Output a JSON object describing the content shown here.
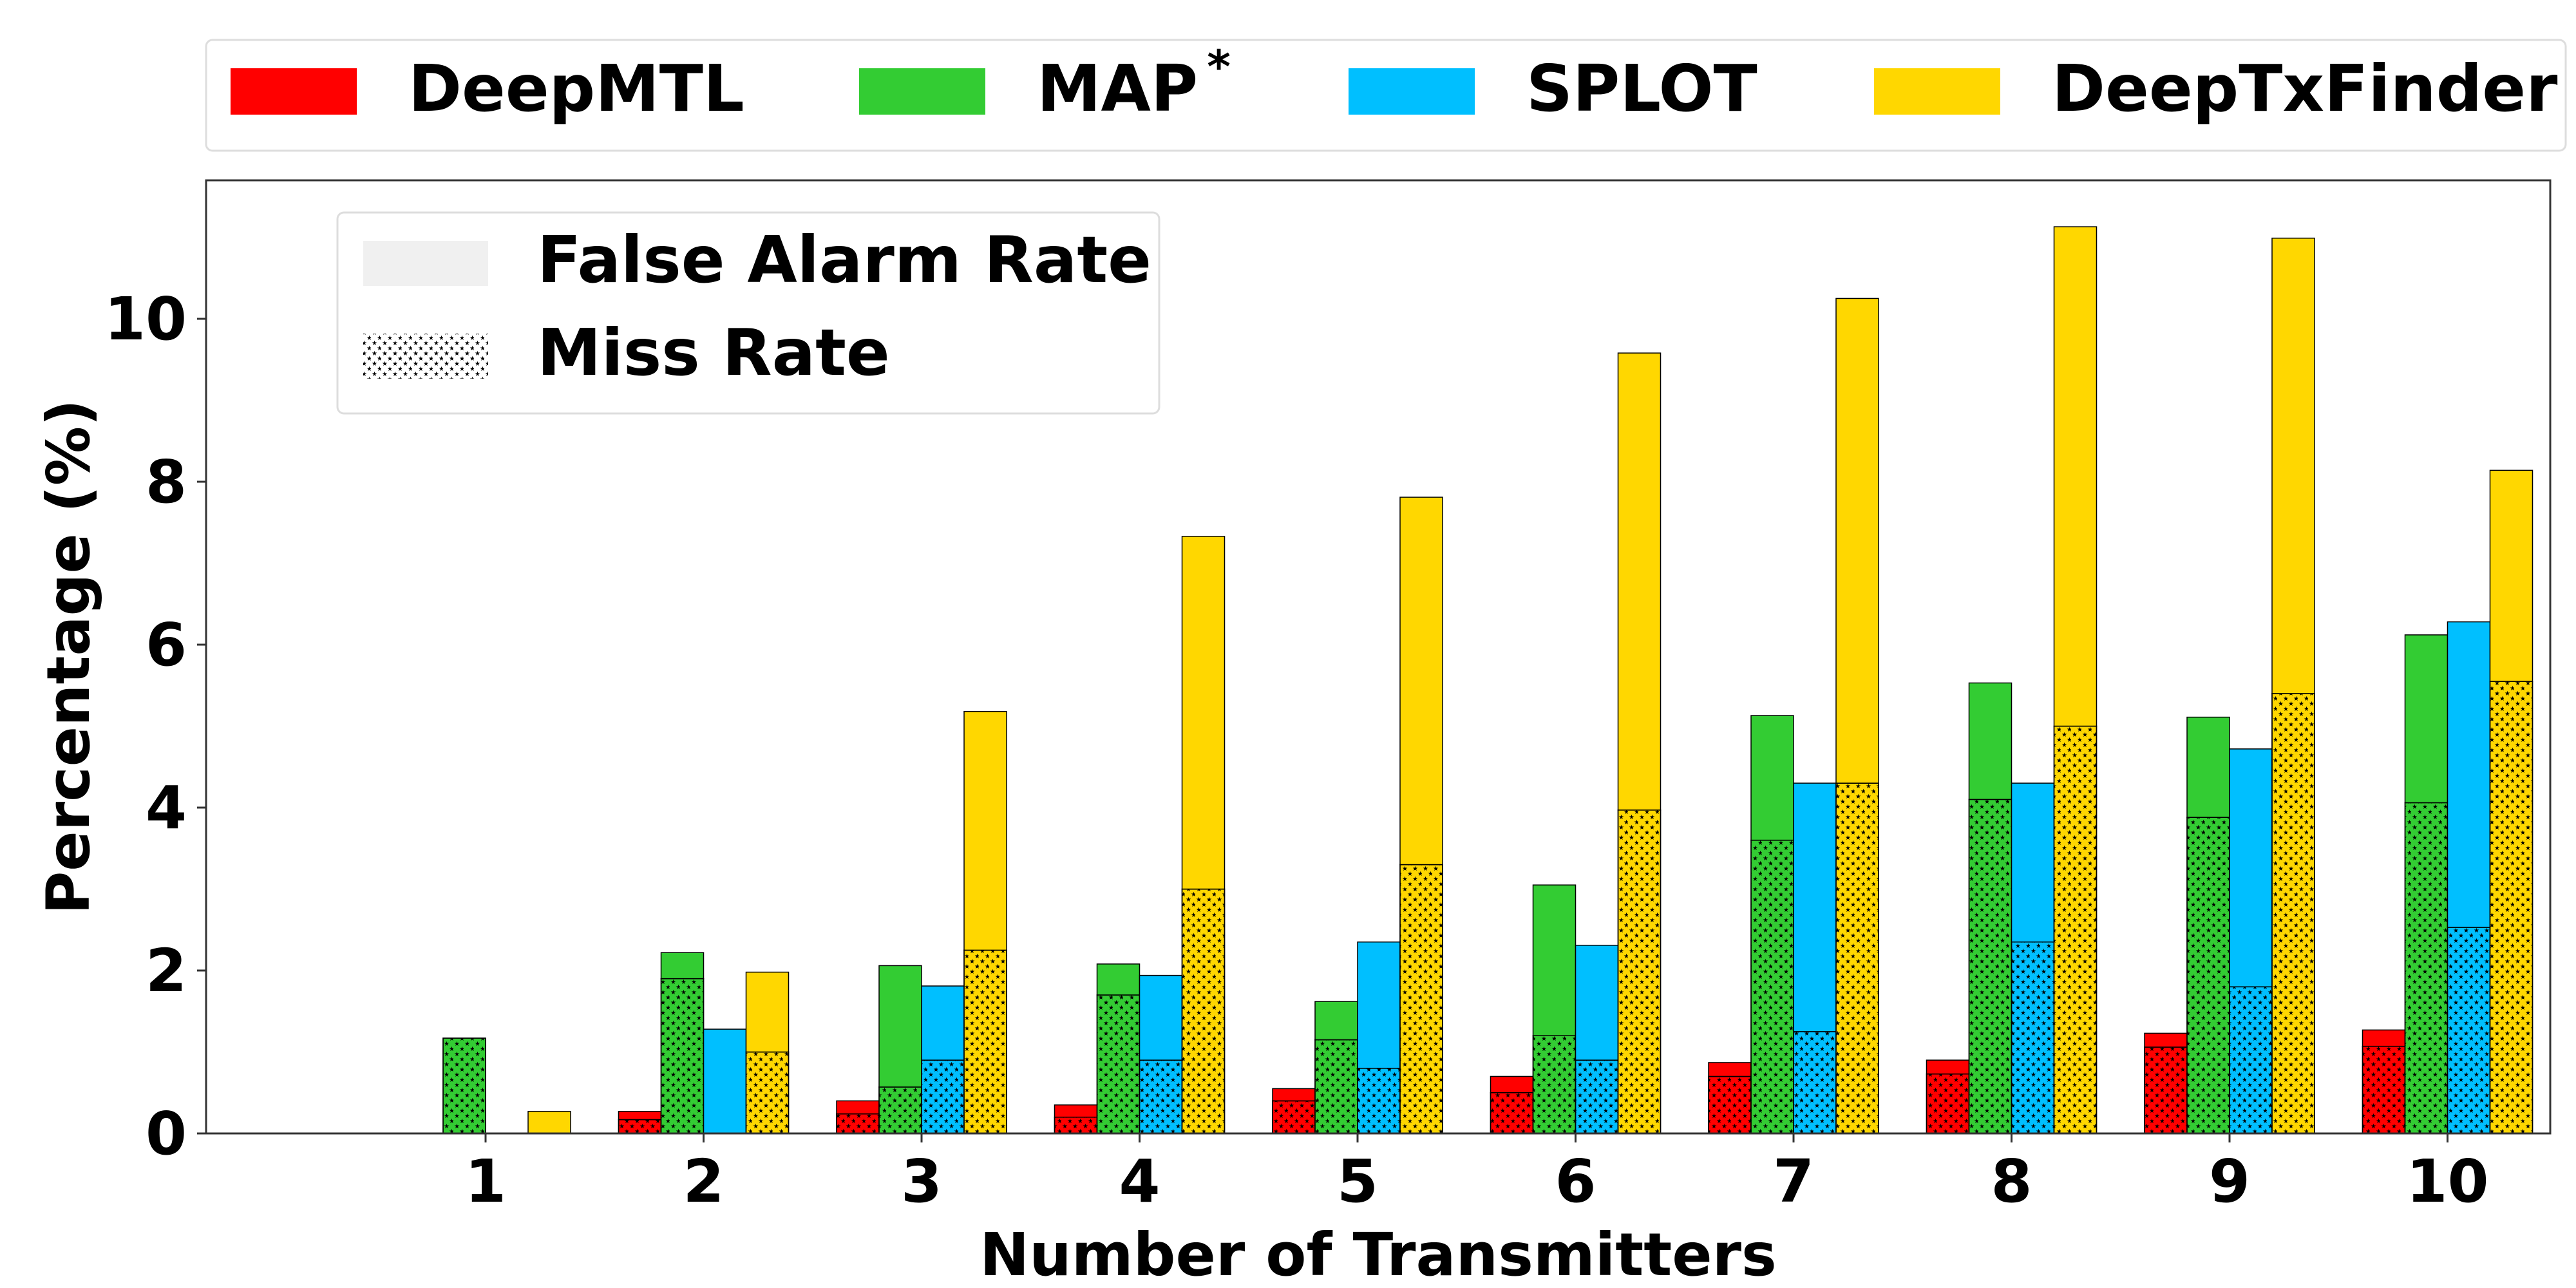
{
  "chart_data": {
    "type": "bar",
    "subtype": "stacked-grouped",
    "xlabel": "Number of Transmitters",
    "ylabel": "Percentage (%)",
    "ylim": [
      0,
      11.7
    ],
    "yticks": [
      0,
      2,
      4,
      6,
      8,
      10
    ],
    "categories": [
      "1",
      "2",
      "3",
      "4",
      "5",
      "6",
      "7",
      "8",
      "9",
      "10"
    ],
    "legend_methods": {
      "placement": "top",
      "entries": [
        {
          "name": "DeepMTL",
          "color": "#ff0000"
        },
        {
          "name": "MAP",
          "superscript": "*",
          "color": "#33cc33"
        },
        {
          "name": "SPLOT",
          "color": "#00bfff"
        },
        {
          "name": "DeepTxFinder",
          "color": "#ffd700"
        }
      ]
    },
    "legend_metrics": {
      "placement": "top-left",
      "entries": [
        {
          "name": "False Alarm Rate",
          "pattern": "solid"
        },
        {
          "name": "Miss Rate",
          "pattern": "stars"
        }
      ]
    },
    "stack_order": [
      "Miss Rate",
      "False Alarm Rate"
    ],
    "series": [
      {
        "name": "DeepMTL",
        "color": "#ff0000",
        "miss_rate": [
          0.0,
          0.17,
          0.24,
          0.2,
          0.4,
          0.5,
          0.7,
          0.73,
          1.06,
          1.07
        ],
        "false_alarm_rate": [
          0.0,
          0.1,
          0.16,
          0.15,
          0.15,
          0.2,
          0.17,
          0.17,
          0.17,
          0.2
        ]
      },
      {
        "name": "MAP*",
        "color": "#33cc33",
        "miss_rate": [
          1.17,
          1.9,
          0.57,
          1.7,
          1.15,
          1.2,
          3.6,
          4.1,
          3.88,
          4.06
        ],
        "false_alarm_rate": [
          0.0,
          0.32,
          1.49,
          0.38,
          0.47,
          1.85,
          1.53,
          1.43,
          1.23,
          2.06
        ]
      },
      {
        "name": "SPLOT",
        "color": "#00bfff",
        "miss_rate": [
          0.0,
          0.0,
          0.9,
          0.9,
          0.8,
          0.9,
          1.25,
          2.35,
          1.8,
          2.53
        ],
        "false_alarm_rate": [
          0.0,
          1.28,
          0.91,
          1.04,
          1.55,
          1.41,
          3.05,
          1.95,
          2.92,
          3.75
        ]
      },
      {
        "name": "DeepTxFinder",
        "color": "#ffd700",
        "miss_rate": [
          0.0,
          1.0,
          2.25,
          3.0,
          3.3,
          3.97,
          4.3,
          5.0,
          5.4,
          5.55
        ],
        "false_alarm_rate": [
          0.27,
          0.98,
          2.93,
          4.33,
          4.51,
          5.61,
          5.95,
          6.13,
          5.59,
          2.59
        ]
      }
    ]
  }
}
